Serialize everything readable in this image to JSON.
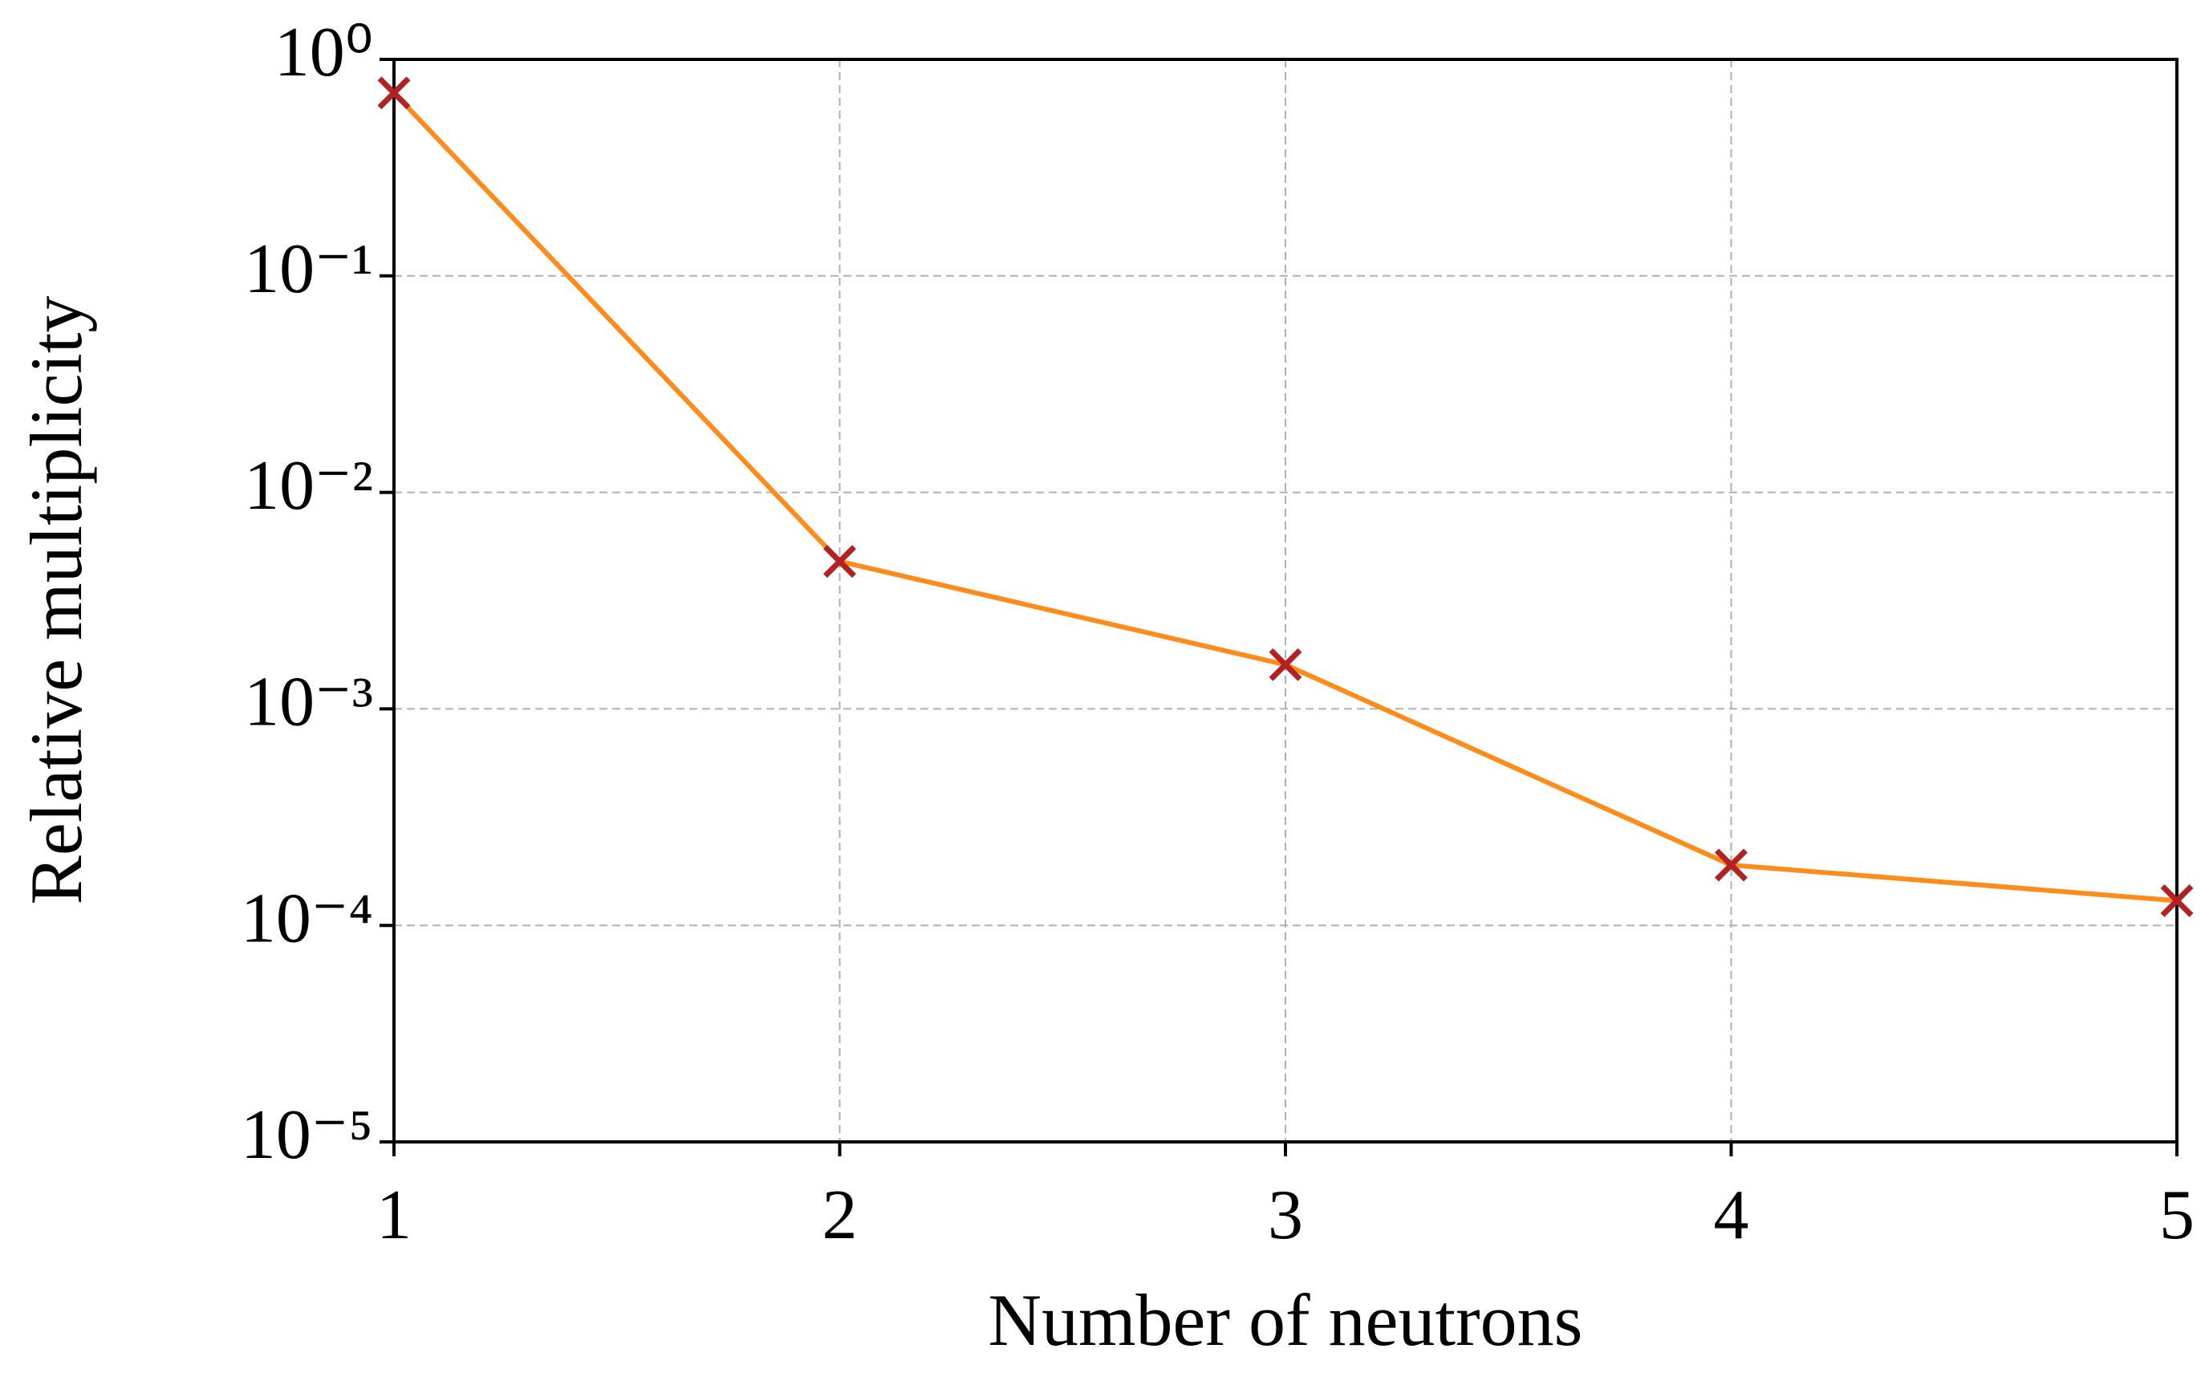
{
  "chart_data": {
    "type": "line",
    "x_label": "Number of neutrons",
    "y_label": "Relative multiplicity",
    "x": [
      1,
      2,
      3,
      4,
      5
    ],
    "series": [
      {
        "color": "#ff8c1a",
        "marker_color": "#b22222",
        "values": [
          0.7,
          0.0048,
          0.0016,
          0.00019,
          0.00013
        ]
      }
    ],
    "xlim": [
      1,
      5
    ],
    "xticks": [
      1,
      2,
      3,
      4,
      5
    ],
    "ylim": [
      1e-05,
      1
    ],
    "ylog": true,
    "yticks": [
      {
        "value": 1,
        "label": "10⁰"
      },
      {
        "value": 0.1,
        "label": "10⁻¹"
      },
      {
        "value": 0.01,
        "label": "10⁻²"
      },
      {
        "value": 0.001,
        "label": "10⁻³"
      },
      {
        "value": 0.0001,
        "label": "10⁻⁴"
      },
      {
        "value": 1e-05,
        "label": "10⁻⁵"
      }
    ],
    "grid": true
  }
}
